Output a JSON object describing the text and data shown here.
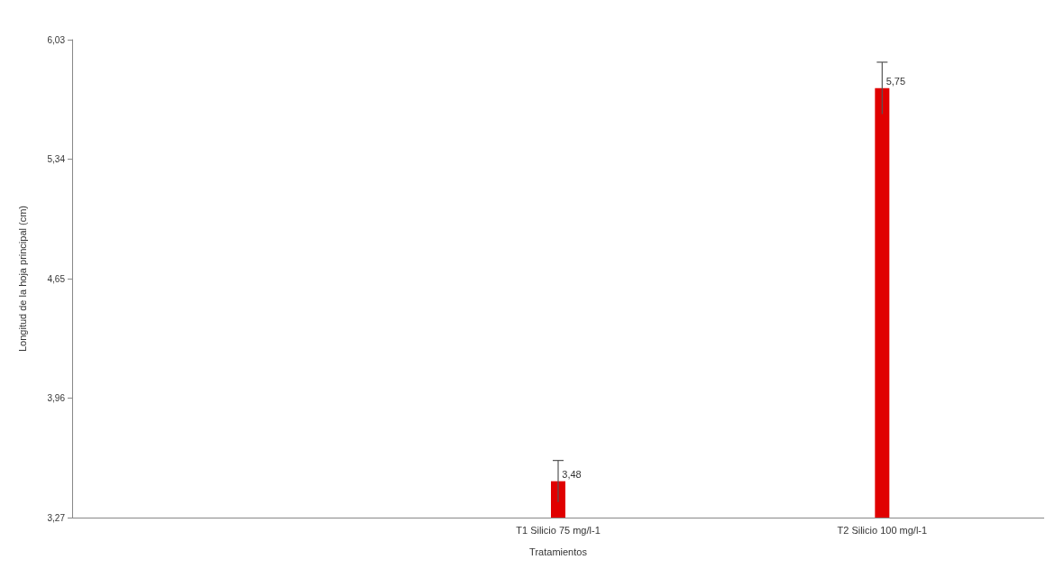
{
  "chart_data": {
    "type": "bar",
    "xlabel": "Tratamientos",
    "ylabel": "Longitud de la hoja principal (cm)",
    "categories": [
      null,
      "T1 Silicio 75 mg/l-1",
      "T2 Silicio 100 mg/l-1"
    ],
    "values": [
      null,
      3.48,
      5.75
    ],
    "color": "#e00000",
    "errors": [
      null,
      0.12,
      0.15
    ],
    "value_labels": [
      null,
      "3,48",
      "5,75"
    ],
    "ylim": [
      3.27,
      6.03
    ],
    "yticks": [
      {
        "value": 3.27,
        "label": "3,27"
      },
      {
        "value": 3.96,
        "label": "3,96"
      },
      {
        "value": 4.65,
        "label": "4,65"
      },
      {
        "value": 5.34,
        "label": "5,34"
      },
      {
        "value": 6.03,
        "label": "6,03"
      }
    ],
    "grid": false
  }
}
